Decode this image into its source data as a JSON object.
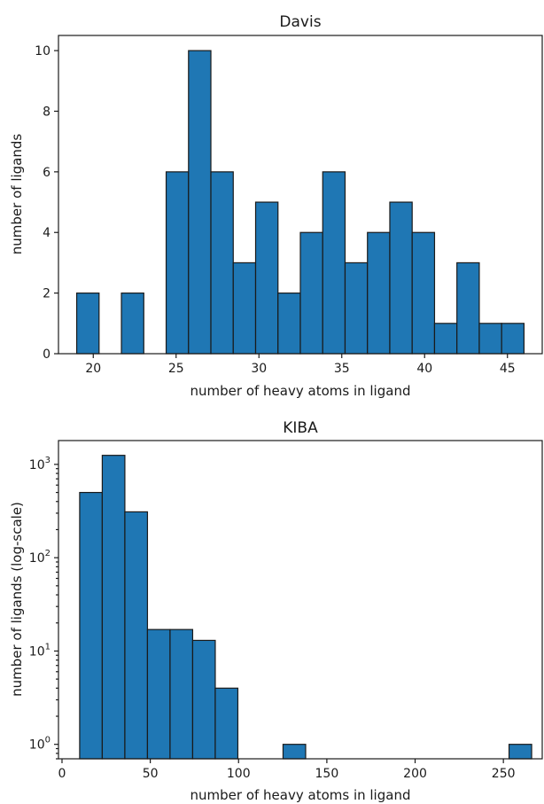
{
  "chart_data": [
    {
      "type": "bar",
      "title": "Davis",
      "xlabel": "number of heavy atoms in ligand",
      "ylabel": "number of ligands",
      "color": "#1f77b4",
      "xlim": [
        17.9,
        47.1
      ],
      "ylim": [
        0,
        10.5
      ],
      "xticks": [
        20,
        25,
        30,
        35,
        40,
        45
      ],
      "yticks": [
        0,
        2,
        4,
        6,
        8,
        10
      ],
      "bin_edges": [
        19,
        20.35,
        21.7,
        23.05,
        24.4,
        25.75,
        27.1,
        28.45,
        29.8,
        31.15,
        32.5,
        33.85,
        35.2,
        36.55,
        37.9,
        39.25,
        40.6,
        41.95,
        43.3,
        44.65,
        46
      ],
      "values": [
        2,
        0,
        2,
        0,
        6,
        10,
        6,
        3,
        5,
        2,
        4,
        6,
        3,
        4,
        5,
        4,
        1,
        3,
        1,
        1
      ],
      "grid": false
    },
    {
      "type": "bar",
      "title": "KIBA",
      "xlabel": "number of heavy atoms in ligand",
      "ylabel": "number of ligands (log-scale)",
      "yscale": "log",
      "color": "#1f77b4",
      "xlim": [
        -2,
        272
      ],
      "ylim": [
        0.7,
        1800
      ],
      "xticks": [
        0,
        50,
        100,
        150,
        200,
        250
      ],
      "yticks": [
        1,
        10,
        100,
        1000
      ],
      "ytick_labels": [
        [
          "10",
          "0"
        ],
        [
          "10",
          "1"
        ],
        [
          "10",
          "2"
        ],
        [
          "10",
          "3"
        ]
      ],
      "bin_edges": [
        10,
        22.8,
        35.6,
        48.4,
        61.2,
        74,
        86.8,
        99.6,
        112.4,
        125.2,
        138,
        150.8,
        163.6,
        176.4,
        189.2,
        202,
        214.8,
        227.6,
        240.4,
        253.2,
        266
      ],
      "values": [
        500,
        1250,
        310,
        17,
        17,
        13,
        4,
        0,
        0,
        1,
        0,
        0,
        0,
        0,
        0,
        0,
        0,
        0,
        0,
        1
      ],
      "grid": false
    }
  ]
}
